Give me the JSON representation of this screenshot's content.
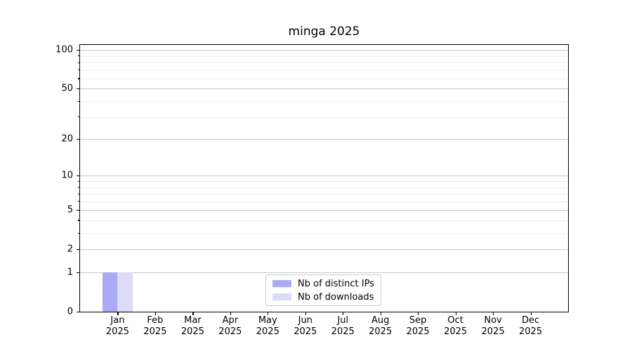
{
  "chart_data": {
    "type": "bar",
    "title": "minga 2025",
    "categories": [
      "Jan 2025",
      "Feb 2025",
      "Mar 2025",
      "Apr 2025",
      "May 2025",
      "Jun 2025",
      "Jul 2025",
      "Aug 2025",
      "Sep 2025",
      "Oct 2025",
      "Nov 2025",
      "Dec 2025"
    ],
    "series": [
      {
        "name": "Nb of distinct IPs",
        "color": "#aaaaf5",
        "values": [
          1,
          0,
          0,
          0,
          0,
          0,
          0,
          0,
          0,
          0,
          0,
          0
        ]
      },
      {
        "name": "Nb of downloads",
        "color": "#dcdcf8",
        "values": [
          1,
          0,
          0,
          0,
          0,
          0,
          0,
          0,
          0,
          0,
          0,
          0
        ]
      }
    ],
    "xlabel": "",
    "ylabel": "",
    "yscale": "log1p",
    "ylim": [
      0,
      110
    ],
    "y_major_ticks": [
      0,
      1,
      2,
      5,
      10,
      20,
      50,
      100
    ],
    "y_minor_ticks": [
      3,
      4,
      6,
      7,
      8,
      9,
      30,
      40,
      60,
      70,
      80,
      90
    ],
    "grid": "both",
    "legend_position": "lower center",
    "colors": {
      "major_grid": "#c6c6c6",
      "minor_grid": "#ededed",
      "spine": "#000000",
      "text": "#000000",
      "background": "#ffffff"
    }
  }
}
